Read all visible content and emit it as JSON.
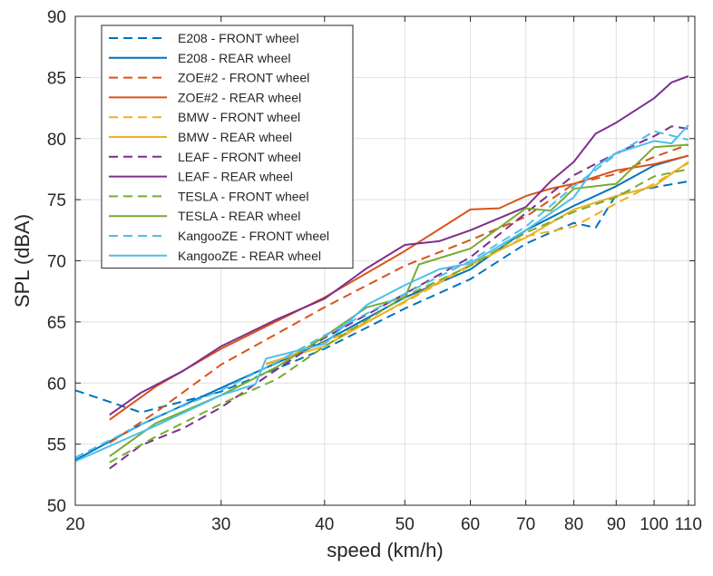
{
  "chart_data": {
    "type": "line",
    "xlabel": "speed (km/h)",
    "ylabel": "SPL (dBA)",
    "x_scale": "log",
    "xlim": [
      20,
      112
    ],
    "ylim": [
      50,
      90
    ],
    "x_ticks": [
      20,
      30,
      40,
      50,
      60,
      70,
      80,
      90,
      100,
      110
    ],
    "x_tick_labels": [
      "20",
      "30",
      "40",
      "50",
      "60",
      "70",
      "80",
      "90",
      "100",
      "110"
    ],
    "y_ticks": [
      50,
      55,
      60,
      65,
      70,
      75,
      80,
      85,
      90
    ],
    "y_tick_labels": [
      "50",
      "55",
      "60",
      "65",
      "70",
      "75",
      "80",
      "85",
      "90"
    ],
    "grid": true,
    "legend_position": "top-left",
    "series": [
      {
        "name": "E208 - FRONT wheel",
        "color": "#0072BD",
        "dash": "dashed",
        "x": [
          20,
          24,
          30,
          40,
          50,
          60,
          70,
          75,
          80,
          85,
          90,
          100,
          110
        ],
        "y": [
          59.4,
          57.6,
          59.3,
          62.8,
          66.1,
          68.5,
          71.4,
          72.3,
          73.1,
          72.7,
          75.4,
          76.0,
          76.5
        ]
      },
      {
        "name": "E208 - REAR wheel",
        "color": "#0072BD",
        "dash": "solid",
        "x": [
          20,
          24,
          30,
          40,
          50,
          60,
          70,
          80,
          90,
          100,
          110
        ],
        "y": [
          53.7,
          56.6,
          59.6,
          63.4,
          67.0,
          69.3,
          72.5,
          74.5,
          76.1,
          77.8,
          78.6
        ]
      },
      {
        "name": "ZOE#2 - FRONT wheel",
        "color": "#D95319",
        "dash": "dashed",
        "x": [
          22,
          25,
          30,
          40,
          50,
          60,
          70,
          80,
          90,
          100,
          110
        ],
        "y": [
          55.1,
          57.6,
          61.5,
          66.2,
          69.6,
          71.7,
          73.6,
          76.3,
          77.1,
          78.5,
          79.5
        ]
      },
      {
        "name": "ZOE#2 - REAR wheel",
        "color": "#D95319",
        "dash": "solid",
        "x": [
          22,
          25,
          30,
          40,
          50,
          60,
          65,
          70,
          75,
          80,
          90,
          100,
          110
        ],
        "y": [
          57.0,
          59.7,
          62.8,
          67.0,
          70.8,
          74.2,
          74.3,
          75.3,
          75.9,
          76.3,
          77.4,
          77.9,
          78.6
        ]
      },
      {
        "name": "BMW - FRONT wheel",
        "color": "#EDB120",
        "dash": "dashed",
        "x": [
          34,
          40,
          50,
          60,
          70,
          80,
          90,
          100,
          110
        ],
        "y": [
          61.5,
          63.3,
          66.6,
          69.6,
          72.0,
          72.8,
          74.7,
          76.3,
          78.0
        ]
      },
      {
        "name": "BMW - REAR wheel",
        "color": "#EDB120",
        "dash": "solid",
        "x": [
          34,
          40,
          50,
          60,
          70,
          80,
          90,
          100,
          110
        ],
        "y": [
          61.6,
          63.0,
          66.7,
          69.7,
          71.9,
          74.2,
          75.3,
          76.1,
          78.1
        ]
      },
      {
        "name": "LEAF - FRONT wheel",
        "color": "#7E2F8E",
        "dash": "dashed",
        "x": [
          22,
          24,
          27,
          30,
          35,
          40,
          50,
          60,
          70,
          80,
          90,
          100,
          105,
          110
        ],
        "y": [
          53.0,
          54.9,
          56.3,
          58.0,
          61.1,
          63.7,
          67.3,
          70.3,
          73.9,
          77.0,
          78.8,
          80.2,
          81.0,
          80.8
        ]
      },
      {
        "name": "LEAF - REAR wheel",
        "color": "#7E2F8E",
        "dash": "solid",
        "x": [
          22,
          24,
          27,
          30,
          35,
          40,
          45,
          50,
          55,
          60,
          70,
          75,
          80,
          85,
          90,
          100,
          105,
          110
        ],
        "y": [
          57.4,
          59.2,
          61.0,
          63.0,
          65.2,
          66.9,
          69.4,
          71.3,
          71.6,
          72.5,
          74.4,
          76.5,
          78.1,
          80.4,
          81.3,
          83.3,
          84.6,
          85.1
        ]
      },
      {
        "name": "TESLA - FRONT wheel",
        "color": "#77AC30",
        "dash": "dashed",
        "x": [
          22,
          25,
          30,
          35,
          40,
          50,
          60,
          70,
          80,
          90,
          100,
          110
        ],
        "y": [
          53.5,
          55.6,
          58.3,
          60.3,
          63.0,
          67.1,
          69.6,
          72.3,
          74.0,
          75.2,
          76.9,
          77.5
        ]
      },
      {
        "name": "TESLA - REAR wheel",
        "color": "#77AC30",
        "dash": "solid",
        "x": [
          22,
          25,
          30,
          35,
          40,
          45,
          50,
          52,
          60,
          70,
          75,
          80,
          90,
          100,
          110
        ],
        "y": [
          54.0,
          56.7,
          59.0,
          61.3,
          63.8,
          66.2,
          67.0,
          69.7,
          71.0,
          74.3,
          74.1,
          75.9,
          76.3,
          79.3,
          79.5
        ]
      },
      {
        "name": "KangooZE - FRONT wheel",
        "color": "#4DBEEE",
        "dash": "dashed",
        "x": [
          20,
          25,
          30,
          35,
          40,
          50,
          60,
          70,
          80,
          90,
          100,
          110
        ],
        "y": [
          53.9,
          57.2,
          59.4,
          61.7,
          63.9,
          67.3,
          70.0,
          72.8,
          76.1,
          78.7,
          80.6,
          79.9
        ]
      },
      {
        "name": "KangooZE - REAR wheel",
        "color": "#4DBEEE",
        "dash": "solid",
        "x": [
          20,
          25,
          30,
          33,
          34,
          40,
          45,
          50,
          55,
          60,
          70,
          80,
          85,
          90,
          100,
          105,
          110
        ],
        "y": [
          53.6,
          56.5,
          59.0,
          59.9,
          62.0,
          63.2,
          66.4,
          68.0,
          69.3,
          69.8,
          72.5,
          75.2,
          77.7,
          78.8,
          79.8,
          79.6,
          81.1
        ]
      }
    ]
  }
}
